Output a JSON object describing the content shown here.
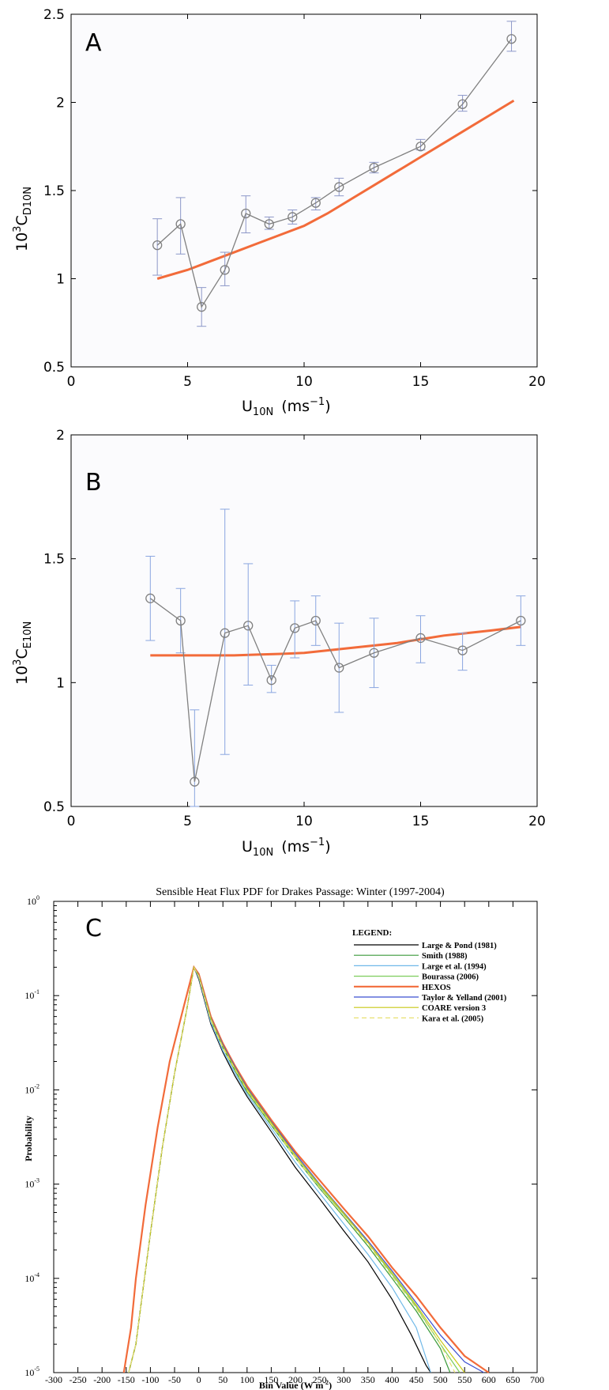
{
  "chart_data": [
    {
      "panel": "A",
      "type": "line",
      "xlabel": "U",
      "xlabel_sub": "10N",
      "xlabel_units": "(ms",
      "xlabel_sup": "−1",
      "xlabel_close": ")",
      "ylabel_prefix": "10",
      "ylabel_sup": "3",
      "ylabel_main": "C",
      "ylabel_sub": "D10N",
      "xlim": [
        0,
        20
      ],
      "ylim": [
        0.5,
        2.5
      ],
      "xticks": [
        "0",
        "5",
        "10",
        "15",
        "20"
      ],
      "yticks": [
        "0.5",
        "1",
        "1.5",
        "2",
        "2.5"
      ],
      "series": [
        {
          "style": "gray line with circle markers and +/- error marks",
          "color": "#808080",
          "x": [
            3.7,
            4.7,
            5.6,
            6.6,
            7.5,
            8.5,
            9.5,
            10.5,
            11.5,
            13.0,
            15.0,
            16.8,
            18.9
          ],
          "y": [
            1.19,
            1.31,
            0.84,
            1.05,
            1.37,
            1.31,
            1.35,
            1.43,
            1.52,
            1.63,
            1.75,
            1.99,
            2.36
          ],
          "err_low": [
            1.02,
            1.14,
            0.73,
            0.96,
            1.26,
            1.28,
            1.31,
            1.39,
            1.47,
            1.6,
            1.73,
            1.95,
            2.29
          ],
          "err_high": [
            1.34,
            1.46,
            0.95,
            1.15,
            1.47,
            1.35,
            1.39,
            1.46,
            1.57,
            1.66,
            1.79,
            2.04,
            2.46
          ]
        },
        {
          "style": "orange model curve",
          "color": "#f26b3a",
          "x": [
            3.7,
            5,
            6,
            7,
            8,
            9,
            10,
            11,
            12,
            13,
            14,
            15,
            16,
            17,
            18,
            19
          ],
          "y": [
            1.0,
            1.05,
            1.1,
            1.15,
            1.2,
            1.25,
            1.3,
            1.37,
            1.45,
            1.53,
            1.61,
            1.69,
            1.77,
            1.85,
            1.93,
            2.01
          ]
        }
      ]
    },
    {
      "panel": "B",
      "type": "line",
      "xlabel": "U",
      "xlabel_sub": "10N",
      "xlabel_units": "(ms",
      "xlabel_sup": "−1",
      "xlabel_close": ")",
      "ylabel_prefix": "10",
      "ylabel_sup": "3",
      "ylabel_main": "C",
      "ylabel_sub": "E10N",
      "xlim": [
        0,
        20
      ],
      "ylim": [
        0.5,
        2
      ],
      "xticks": [
        "0",
        "5",
        "10",
        "15",
        "20"
      ],
      "yticks": [
        "0.5",
        "1",
        "1.5",
        "2"
      ],
      "series": [
        {
          "style": "gray line with circle markers and blue error bars",
          "color": "#808080",
          "x": [
            3.4,
            4.7,
            5.3,
            6.6,
            7.6,
            8.6,
            9.6,
            10.5,
            11.5,
            13.0,
            15.0,
            16.8,
            19.3
          ],
          "y": [
            1.34,
            1.25,
            0.6,
            1.2,
            1.23,
            1.01,
            1.22,
            1.25,
            1.06,
            1.12,
            1.18,
            1.13,
            1.25
          ],
          "err_low": [
            1.17,
            1.12,
            0.5,
            0.71,
            0.99,
            0.96,
            1.1,
            1.15,
            0.88,
            0.98,
            1.08,
            1.05,
            1.15
          ],
          "err_high": [
            1.51,
            1.38,
            0.89,
            1.7,
            1.48,
            1.07,
            1.33,
            1.35,
            1.24,
            1.26,
            1.27,
            1.2,
            1.35
          ]
        },
        {
          "style": "orange model curve",
          "color": "#f26b3a",
          "x": [
            3.4,
            5,
            6,
            7,
            8,
            9,
            10,
            11,
            12,
            13,
            14,
            15,
            16,
            17,
            18,
            19.3
          ],
          "y": [
            1.11,
            1.11,
            1.11,
            1.11,
            1.113,
            1.116,
            1.12,
            1.13,
            1.14,
            1.15,
            1.16,
            1.175,
            1.19,
            1.2,
            1.21,
            1.225
          ]
        }
      ]
    },
    {
      "panel": "C",
      "type": "line",
      "title": "Sensible Heat Flux PDF for Drakes Passage: Winter (1997-2004)",
      "xlabel": "Bin Value (W m",
      "xlabel_sup": "-2",
      "xlabel_close": ")",
      "ylabel": "Probability",
      "yscale": "log",
      "xlim": [
        -300,
        700
      ],
      "ylim": [
        1e-05,
        1
      ],
      "xticks": [
        "-300",
        "-250",
        "-200",
        "-150",
        "-100",
        "-50",
        "0",
        "50",
        "100",
        "150",
        "200",
        "250",
        "300",
        "350",
        "400",
        "450",
        "500",
        "550",
        "600",
        "650",
        "700"
      ],
      "yticks_base": "10",
      "yticks_exp": [
        "0",
        "-1",
        "-2",
        "-3",
        "-4",
        "-5"
      ],
      "legend_title": "LEGEND:",
      "legend_position": "top-right",
      "series": [
        {
          "name": "Large & Pond (1981)",
          "color": "#000000",
          "dash": "",
          "x": [
            -145,
            -130,
            -120,
            -100,
            -75,
            -50,
            -25,
            -10,
            0,
            25,
            50,
            75,
            100,
            150,
            200,
            250,
            300,
            350,
            400,
            440,
            470,
            480
          ],
          "y": [
            1e-05,
            2e-05,
            5e-05,
            0.0003,
            0.0025,
            0.015,
            0.07,
            0.2,
            0.15,
            0.05,
            0.025,
            0.014,
            0.0085,
            0.0036,
            0.0015,
            0.0007,
            0.00032,
            0.00015,
            6e-05,
            2.5e-05,
            1.2e-05,
            1e-05
          ]
        },
        {
          "name": "Smith (1988)",
          "color": "#3a9a3a",
          "dash": "",
          "x": [
            -145,
            -130,
            -120,
            -100,
            -75,
            -50,
            -25,
            -10,
            0,
            25,
            50,
            75,
            100,
            150,
            200,
            250,
            300,
            350,
            400,
            450,
            500,
            520
          ],
          "y": [
            1e-05,
            2e-05,
            5e-05,
            0.0003,
            0.0025,
            0.015,
            0.07,
            0.2,
            0.16,
            0.055,
            0.028,
            0.016,
            0.0095,
            0.0042,
            0.0019,
            0.0009,
            0.00045,
            0.00022,
            0.0001,
            4.5e-05,
            1.8e-05,
            1e-05
          ]
        },
        {
          "name": "Large et al. (1994)",
          "color": "#6fb8e8",
          "dash": "",
          "x": [
            -145,
            -130,
            -120,
            -100,
            -75,
            -50,
            -25,
            -10,
            0,
            25,
            50,
            75,
            100,
            150,
            200,
            250,
            300,
            350,
            400,
            450,
            480
          ],
          "y": [
            1e-05,
            2e-05,
            5e-05,
            0.0003,
            0.0025,
            0.015,
            0.07,
            0.2,
            0.155,
            0.052,
            0.026,
            0.015,
            0.009,
            0.0039,
            0.0017,
            0.0008,
            0.00038,
            0.00018,
            8e-05,
            3e-05,
            1e-05
          ]
        },
        {
          "name": "Bourassa (2006)",
          "color": "#7ccd5a",
          "dash": "",
          "x": [
            -145,
            -130,
            -120,
            -100,
            -75,
            -50,
            -25,
            -10,
            0,
            25,
            50,
            75,
            100,
            150,
            200,
            250,
            300,
            350,
            400,
            450,
            500,
            540
          ],
          "y": [
            1e-05,
            2e-05,
            5e-05,
            0.0003,
            0.0025,
            0.015,
            0.07,
            0.2,
            0.162,
            0.056,
            0.029,
            0.017,
            0.01,
            0.0044,
            0.002,
            0.00095,
            0.00048,
            0.00024,
            0.00011,
            5e-05,
            2e-05,
            1e-05
          ]
        },
        {
          "name": "HEXOS",
          "color": "#f26b3a",
          "dash": "",
          "x": [
            -155,
            -140,
            -130,
            -110,
            -85,
            -60,
            -30,
            -10,
            0,
            25,
            50,
            75,
            100,
            150,
            200,
            250,
            300,
            350,
            400,
            450,
            500,
            550,
            600
          ],
          "y": [
            1e-05,
            3e-05,
            0.0001,
            0.0006,
            0.004,
            0.02,
            0.08,
            0.2,
            0.17,
            0.06,
            0.031,
            0.018,
            0.011,
            0.0048,
            0.0022,
            0.0011,
            0.00055,
            0.00028,
            0.00013,
            6.5e-05,
            3e-05,
            1.5e-05,
            1e-05
          ]
        },
        {
          "name": "Taylor & Yelland (2001)",
          "color": "#3b4fd0",
          "dash": "",
          "x": [
            -145,
            -130,
            -120,
            -100,
            -75,
            -50,
            -25,
            -10,
            0,
            25,
            50,
            75,
            100,
            150,
            200,
            250,
            300,
            350,
            400,
            450,
            500,
            550,
            590
          ],
          "y": [
            1e-05,
            2e-05,
            5e-05,
            0.0003,
            0.0025,
            0.015,
            0.07,
            0.2,
            0.165,
            0.058,
            0.03,
            0.0175,
            0.0105,
            0.0046,
            0.0021,
            0.001,
            0.0005,
            0.00025,
            0.00012,
            5.5e-05,
            2.5e-05,
            1.3e-05,
            1e-05
          ]
        },
        {
          "name": "COARE version 3",
          "color": "#c9c914",
          "dash": "",
          "x": [
            -145,
            -130,
            -120,
            -100,
            -75,
            -50,
            -25,
            -10,
            0,
            25,
            50,
            75,
            100,
            150,
            200,
            250,
            300,
            350,
            400,
            450,
            500,
            550
          ],
          "y": [
            1e-05,
            2e-05,
            5e-05,
            0.0003,
            0.0025,
            0.015,
            0.07,
            0.2,
            0.163,
            0.057,
            0.029,
            0.017,
            0.0102,
            0.0045,
            0.002,
            0.00098,
            0.00049,
            0.00024,
            0.000115,
            5.2e-05,
            2.2e-05,
            1e-05
          ]
        },
        {
          "name": "Kara et al. (2005)",
          "color": "#e8e070",
          "dash": "6,4",
          "x": [
            -145,
            -130,
            -120,
            -100,
            -75,
            -50,
            -25,
            -10,
            0,
            25,
            50,
            75,
            100,
            150,
            200,
            250,
            300,
            350,
            400,
            450,
            500,
            530
          ],
          "y": [
            1e-05,
            2e-05,
            5e-05,
            0.0003,
            0.0025,
            0.015,
            0.07,
            0.2,
            0.16,
            0.055,
            0.028,
            0.0165,
            0.0098,
            0.0043,
            0.0019,
            0.00092,
            0.00046,
            0.00023,
            0.000105,
            4.8e-05,
            2e-05,
            1e-05
          ]
        }
      ]
    }
  ]
}
